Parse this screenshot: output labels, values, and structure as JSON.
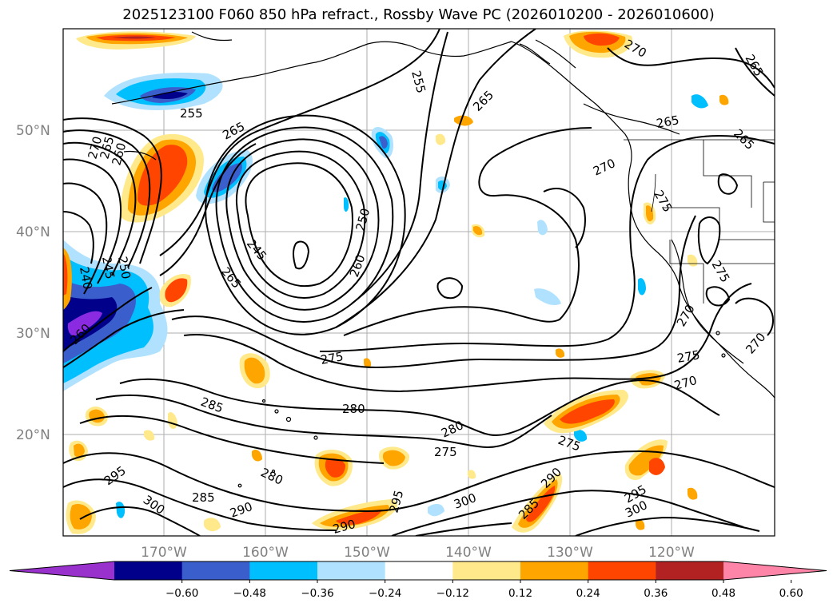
{
  "title": "2025123100 F060 850 hPa refract., Rossby Wave PC (2026010200 - 2026010600)",
  "lat_labels": [
    "50°N",
    "40°N",
    "30°N",
    "20°N"
  ],
  "lon_labels": [
    "170°W",
    "160°W",
    "150°W",
    "140°W",
    "130°W",
    "120°W"
  ],
  "contour_labels": [
    "255",
    "265",
    "270",
    "260",
    "240",
    "245",
    "250",
    "275",
    "280",
    "285",
    "290",
    "295",
    "300"
  ],
  "colorbar": {
    "ticks": [
      "−0.60",
      "−0.48",
      "−0.36",
      "−0.24",
      "−0.12",
      "0.12",
      "0.24",
      "0.36",
      "0.48",
      "0.60"
    ],
    "colors": [
      "#9932cc",
      "#00008b",
      "#3a5fcd",
      "#00bfff",
      "#b0e2ff",
      "#ffffff",
      "#ffe98a",
      "#ffa500",
      "#ff4500",
      "#b22222",
      "#ff85a8"
    ]
  },
  "colors": {
    "deep_purple": "#8a2be2",
    "navy": "#00008b",
    "royal_blue": "#3a5fcd",
    "deep_sky": "#00bfff",
    "light_blue": "#b0e2ff",
    "light_yellow": "#ffe98a",
    "orange": "#ffa500",
    "orange_red": "#ff4500",
    "firebrick": "#b22222",
    "pink": "#ff85a8"
  }
}
